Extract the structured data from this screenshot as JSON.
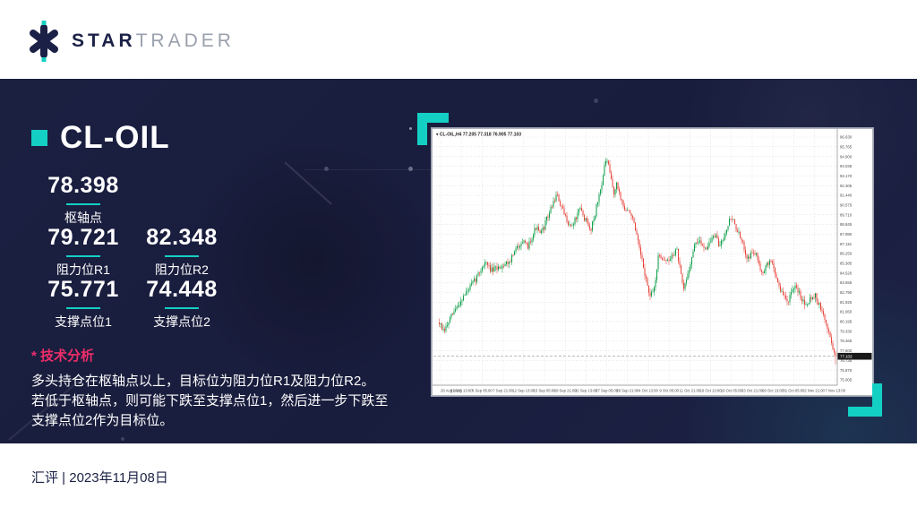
{
  "header": {
    "logo_bold": "STAR",
    "logo_light": "TRADER"
  },
  "panel": {
    "title": "CL-OIL",
    "levels": [
      {
        "value": "78.398",
        "label": "枢轴点"
      },
      {
        "value": "79.721",
        "label": "阻力位R1"
      },
      {
        "value": "82.348",
        "label": "阻力位R2"
      },
      {
        "value": "75.771",
        "label": "支撑点位1"
      },
      {
        "value": "74.448",
        "label": "支撑点位2"
      }
    ],
    "analysis_title": "* 技术分析",
    "analysis_lines": [
      "多头持仓在枢轴点以上，目标位为阻力位R1及阻力位R2。",
      "若低于枢轴点，则可能下跌至支撑点位1，然后进一步下跌至",
      "支撑点位2作为目标位。"
    ]
  },
  "footer": {
    "text": "汇评 | 2023年11月08日"
  },
  "chart_data": {
    "type": "candlestick",
    "title": "CL-OIL,H4 77.205 77.318 76.905 77.103",
    "symbol": "CL-OIL",
    "timeframe": "H4",
    "current_price": "77.103",
    "colors": {
      "up": "#0e9f4a",
      "down": "#e8453c",
      "grid": "#dadada",
      "bg": "#ffffff",
      "axis_text": "#4a4a4a"
    },
    "y_top_value": 96.63,
    "y_step_value": 0.865,
    "y_ticks": [
      "96.630",
      "95.765",
      "94.900",
      "94.035",
      "93.170",
      "92.305",
      "91.440",
      "90.575",
      "89.710",
      "88.845",
      "87.980",
      "87.115",
      "86.250",
      "85.385",
      "84.520",
      "83.655",
      "82.790",
      "81.925",
      "81.060",
      "80.195",
      "79.330",
      "78.465",
      "77.600",
      "76.735",
      "75.870",
      "75.005"
    ],
    "x_ticks": [
      "28 Aug 2023",
      "31 Aug 13:00",
      "5 Sep 05:00",
      "7 Sep 21:00",
      "12 Sep 13:00",
      "15 Sep 05:00",
      "19 Sep 21:00",
      "22 Sep 13:00",
      "27 Sep 05:00",
      "29 Sep 21:00",
      "4 Oct 13:00",
      "9 Oct 05:00",
      "11 Oct 21:00",
      "16 Oct 13:00",
      "19 Oct 05:00",
      "23 Oct 21:00",
      "26 Oct 13:00",
      "31 Oct 05:00",
      "2 Nov 21:00",
      "7 Nov 13:00"
    ],
    "num_candles": 296,
    "price_path": [
      [
        0.0,
        80.1
      ],
      [
        0.011,
        79.2
      ],
      [
        0.03,
        80.6
      ],
      [
        0.06,
        82.4
      ],
      [
        0.089,
        83.8
      ],
      [
        0.115,
        85.5
      ],
      [
        0.133,
        84.7
      ],
      [
        0.178,
        85.6
      ],
      [
        0.207,
        87.4
      ],
      [
        0.222,
        86.8
      ],
      [
        0.244,
        88.6
      ],
      [
        0.256,
        87.9
      ],
      [
        0.281,
        90.2
      ],
      [
        0.296,
        91.5
      ],
      [
        0.315,
        89.7
      ],
      [
        0.333,
        88.6
      ],
      [
        0.356,
        90.2
      ],
      [
        0.381,
        88.3
      ],
      [
        0.393,
        89.8
      ],
      [
        0.408,
        92.2
      ],
      [
        0.422,
        94.8
      ],
      [
        0.441,
        91.6
      ],
      [
        0.448,
        92.4
      ],
      [
        0.467,
        90.2
      ],
      [
        0.485,
        89.8
      ],
      [
        0.519,
        84.4
      ],
      [
        0.532,
        82.3
      ],
      [
        0.542,
        83.1
      ],
      [
        0.554,
        86.2
      ],
      [
        0.578,
        85.5
      ],
      [
        0.599,
        86.7
      ],
      [
        0.616,
        82.9
      ],
      [
        0.648,
        87.4
      ],
      [
        0.674,
        86.8
      ],
      [
        0.695,
        87.9
      ],
      [
        0.707,
        86.9
      ],
      [
        0.737,
        89.6
      ],
      [
        0.763,
        87.3
      ],
      [
        0.778,
        85.9
      ],
      [
        0.796,
        86.4
      ],
      [
        0.815,
        84.6
      ],
      [
        0.837,
        85.7
      ],
      [
        0.863,
        82.8
      ],
      [
        0.878,
        82.0
      ],
      [
        0.9,
        83.3
      ],
      [
        0.922,
        81.8
      ],
      [
        0.948,
        82.6
      ],
      [
        0.974,
        80.3
      ],
      [
        1.0,
        77.1
      ]
    ]
  }
}
